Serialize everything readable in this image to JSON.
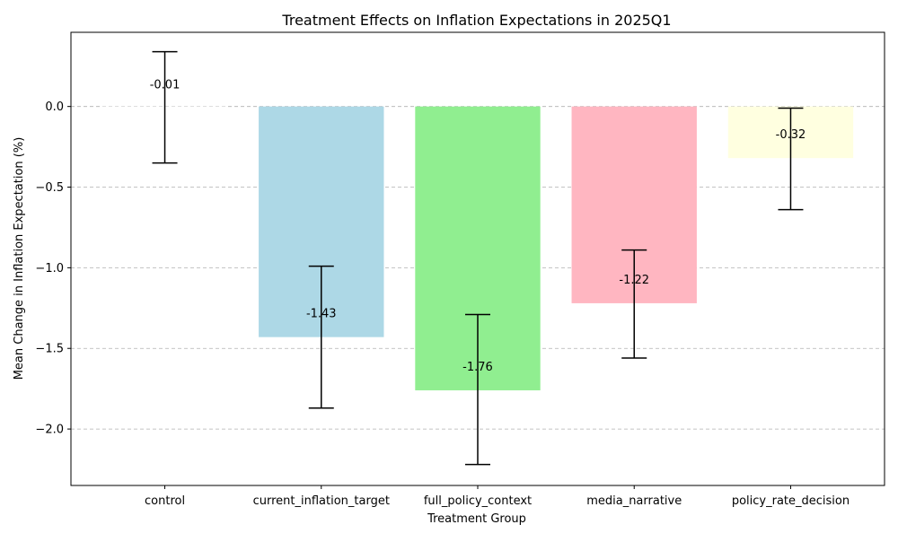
{
  "chart_data": {
    "type": "bar",
    "title": "Treatment Effects on Inflation Expectations in 2025Q1",
    "xlabel": "Treatment Group",
    "ylabel": "Mean Change in Inflation Expectation (%)",
    "categories": [
      "control",
      "current_inflation_target",
      "full_policy_context",
      "media_narrative",
      "policy_rate_decision"
    ],
    "values": [
      -0.01,
      -1.43,
      -1.76,
      -1.22,
      -0.32
    ],
    "value_labels": [
      "-0.01",
      "-1.43",
      "-1.76",
      "-1.22",
      "-0.32"
    ],
    "error_low": [
      -0.35,
      -1.87,
      -2.22,
      -1.56,
      -0.64
    ],
    "error_high": [
      0.34,
      -0.99,
      -1.29,
      -0.89,
      -0.01
    ],
    "colors": [
      "#ffffff",
      "#add8e6",
      "#90ee90",
      "#ffb6c1",
      "#ffffe0"
    ],
    "ylim": [
      -2.35,
      0.46
    ],
    "yticks": [
      0.0,
      -0.5,
      -1.0,
      -1.5,
      -2.0
    ],
    "ytick_labels": [
      "0.0",
      "−0.5",
      "−1.0",
      "−1.5",
      "−2.0"
    ],
    "grid": "y-dashed",
    "legend": "none"
  }
}
